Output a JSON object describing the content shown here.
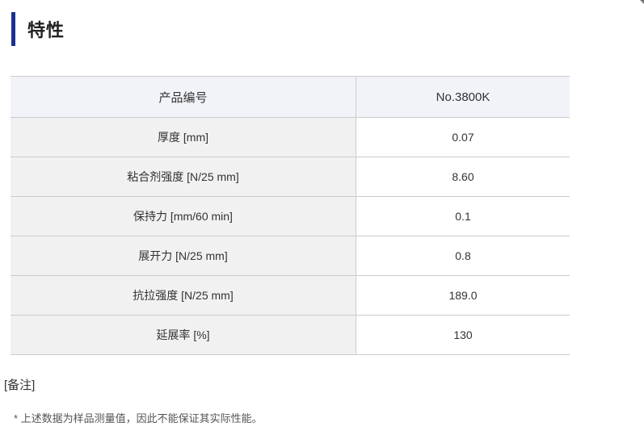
{
  "title": {
    "text": "特性"
  },
  "table": {
    "columns": {
      "label_header": "产品编号",
      "value_header": "No.3800K"
    },
    "rows": [
      {
        "label": "厚度 [mm]",
        "value": "0.07"
      },
      {
        "label": "粘合剂强度 [N/25 mm]",
        "value": "8.60"
      },
      {
        "label": "保持力 [mm/60 min]",
        "value": "0.1"
      },
      {
        "label": "展开力 [N/25 mm]",
        "value": "0.8"
      },
      {
        "label": "抗拉强度 [N/25 mm]",
        "value": "189.0"
      },
      {
        "label": "延展率 [%]",
        "value": "130"
      }
    ]
  },
  "notes": {
    "heading": "[备注]",
    "footnote": "* 上述数据为样品测量值，因此不能保证其实际性能。"
  },
  "colors": {
    "accent": "#1b3090",
    "header_row_bg": "#f2f3f8",
    "label_cell_bg": "#f1f1f1",
    "value_cell_bg": "#ffffff",
    "border": "#cccccc",
    "text": "#333333",
    "footnote_text": "#555555"
  }
}
